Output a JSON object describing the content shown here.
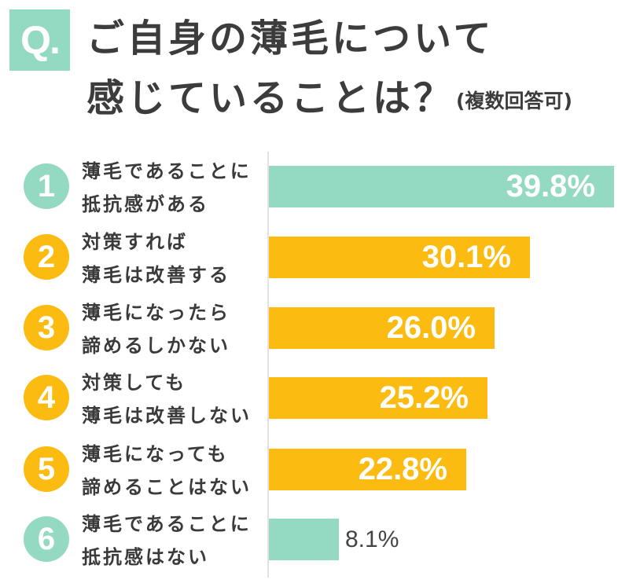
{
  "header": {
    "q_badge": "Q.",
    "title_line1": "ご自身の薄毛について",
    "title_line2": "感じていることは？",
    "note": "(複数回答可)"
  },
  "colors": {
    "teal": "#94dac2",
    "yellow": "#fbbb10",
    "text": "#3a3a3a",
    "axis": "#e3e3e3"
  },
  "items": [
    {
      "num": "1",
      "line1": "薄毛であることに",
      "line2": "抵抗感がある",
      "value": "39.8%",
      "color": "teal"
    },
    {
      "num": "2",
      "line1": "対策すれば",
      "line2": "薄毛は改善する",
      "value": "30.1%",
      "color": "yellow"
    },
    {
      "num": "3",
      "line1": "薄毛になったら",
      "line2": "諦めるしかない",
      "value": "26.0%",
      "color": "yellow"
    },
    {
      "num": "4",
      "line1": "対策しても",
      "line2": "薄毛は改善しない",
      "value": "25.2%",
      "color": "yellow"
    },
    {
      "num": "5",
      "line1": "薄毛になっても",
      "line2": "諦めることはない",
      "value": "22.8%",
      "color": "yellow"
    },
    {
      "num": "6",
      "line1": "薄毛であることに",
      "line2": "抵抗感はない",
      "value": "8.1%",
      "color": "teal"
    }
  ],
  "chart_data": {
    "type": "bar",
    "orientation": "horizontal",
    "title": "ご自身の薄毛について感じていることは？(複数回答可)",
    "categories": [
      "薄毛であることに抵抗感がある",
      "対策すれば薄毛は改善する",
      "薄毛になったら諦めるしかない",
      "対策しても薄毛は改善しない",
      "薄毛になっても諦めることはない",
      "薄毛であることに抵抗感はない"
    ],
    "values": [
      39.8,
      30.1,
      26.0,
      25.2,
      22.8,
      8.1
    ],
    "unit": "%",
    "bar_colors": [
      "#94dac2",
      "#fbbb10",
      "#fbbb10",
      "#fbbb10",
      "#fbbb10",
      "#94dac2"
    ],
    "xlabel": "",
    "ylabel": "",
    "grid": false,
    "legend": null
  }
}
